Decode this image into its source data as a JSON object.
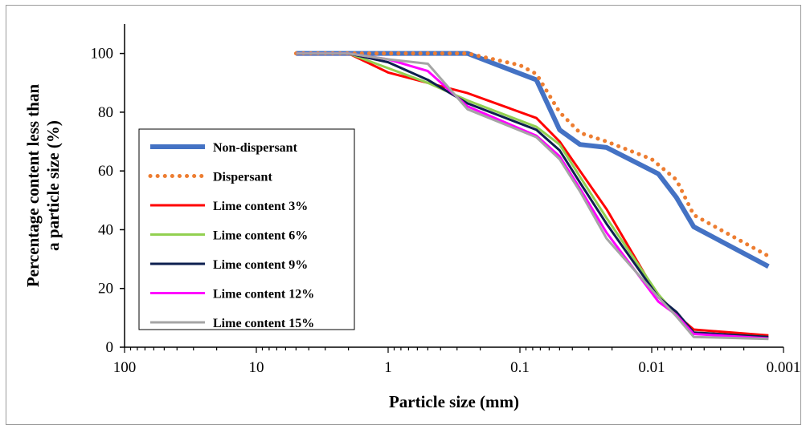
{
  "chart_data": {
    "type": "line",
    "title": "",
    "xlabel": "Particle size (mm)",
    "ylabel_lines": [
      "Percentage content less than",
      "a particle size (%)"
    ],
    "x_scale": "log",
    "x_reversed": true,
    "xlim": [
      100,
      0.001
    ],
    "ylim": [
      0,
      110
    ],
    "x_ticks": [
      100,
      10,
      1,
      0.1,
      0.01,
      0.001
    ],
    "x_tick_labels": [
      "100",
      "10",
      "1",
      "0.1",
      "0.01",
      "0.001"
    ],
    "y_ticks": [
      0,
      20,
      40,
      60,
      80,
      100
    ],
    "y_tick_labels": [
      "0",
      "20",
      "40",
      "60",
      "80",
      "100"
    ],
    "grid": false,
    "legend_position": "left",
    "series": [
      {
        "name": "Non-dispersant",
        "color": "#4472C4",
        "style": "solid",
        "width": 6,
        "x": [
          5,
          2,
          0.5,
          0.25,
          0.075,
          0.05,
          0.035,
          0.022,
          0.0089,
          0.0065,
          0.0048,
          0.0013
        ],
        "y": [
          100,
          100,
          100,
          100,
          91,
          74,
          69,
          68,
          59,
          51,
          41,
          27.5
        ]
      },
      {
        "name": "Dispersant",
        "color": "#ED7D31",
        "style": "dotted",
        "width": 5,
        "x": [
          5,
          2,
          0.5,
          0.25,
          0.1,
          0.075,
          0.05,
          0.035,
          0.022,
          0.01,
          0.0065,
          0.0048,
          0.0013
        ],
        "y": [
          100,
          100,
          100,
          100,
          96,
          93,
          80,
          73,
          70,
          64,
          57,
          45,
          31
        ]
      },
      {
        "name": "Lime content 3%",
        "color": "#FF0000",
        "style": "solid",
        "width": 3,
        "x": [
          5,
          2,
          1,
          0.5,
          0.25,
          0.075,
          0.05,
          0.035,
          0.022,
          0.0089,
          0.0065,
          0.0048,
          0.0013
        ],
        "y": [
          100,
          100,
          93.5,
          90,
          86.5,
          78,
          70,
          60,
          47,
          17,
          11,
          6,
          4
        ]
      },
      {
        "name": "Lime content 6%",
        "color": "#92D050",
        "style": "solid",
        "width": 3,
        "x": [
          5,
          2,
          1,
          0.5,
          0.25,
          0.075,
          0.05,
          0.035,
          0.022,
          0.0089,
          0.0065,
          0.0048,
          0.0013
        ],
        "y": [
          100,
          100,
          95,
          90,
          84,
          75,
          69,
          58,
          44,
          18,
          11,
          5,
          3.5
        ]
      },
      {
        "name": "Lime content 9%",
        "color": "#0D1F4F",
        "style": "solid",
        "width": 3,
        "x": [
          5,
          2,
          1,
          0.5,
          0.25,
          0.075,
          0.05,
          0.035,
          0.022,
          0.0089,
          0.0065,
          0.0048,
          0.0013
        ],
        "y": [
          100,
          100,
          97,
          91,
          83,
          74,
          67,
          56,
          42,
          17,
          12,
          5,
          3.5
        ]
      },
      {
        "name": "Lime content 12%",
        "color": "#FF00FF",
        "style": "solid",
        "width": 3,
        "x": [
          5,
          2,
          1,
          0.5,
          0.25,
          0.075,
          0.05,
          0.035,
          0.022,
          0.0089,
          0.0065,
          0.0048,
          0.0013
        ],
        "y": [
          100,
          100,
          98,
          94,
          82,
          72,
          65,
          54,
          39,
          15.5,
          11,
          4.5,
          3
        ]
      },
      {
        "name": "Lime content 15%",
        "color": "#A5A5A5",
        "style": "solid",
        "width": 3,
        "x": [
          5,
          2,
          1,
          0.5,
          0.25,
          0.075,
          0.05,
          0.035,
          0.022,
          0.0089,
          0.0065,
          0.0048,
          0.0013
        ],
        "y": [
          100,
          100,
          98,
          96.5,
          81,
          71.5,
          64,
          53,
          37,
          17,
          10.5,
          3.5,
          2.8
        ]
      }
    ]
  }
}
